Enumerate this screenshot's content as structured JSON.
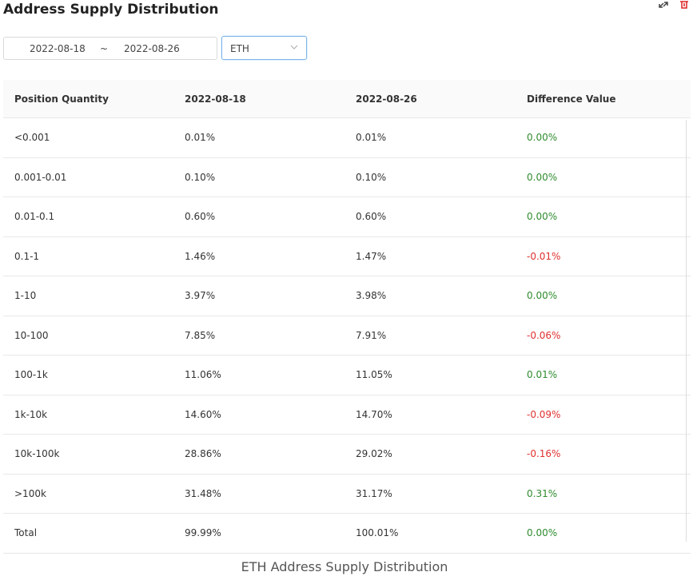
{
  "header": {
    "title": "Address Supply Distribution"
  },
  "filters": {
    "start_date": "2022-08-18",
    "separator": "~",
    "end_date": "2022-08-26",
    "asset": "ETH"
  },
  "table": {
    "columns": [
      "Position Quantity",
      "2022-08-18",
      "2022-08-26",
      "Difference Value"
    ],
    "rows": [
      [
        "<0.001",
        "0.01%",
        "0.01%",
        "0.00%"
      ],
      [
        "0.001-0.01",
        "0.10%",
        "0.10%",
        "0.00%"
      ],
      [
        "0.01-0.1",
        "0.60%",
        "0.60%",
        "0.00%"
      ],
      [
        "0.1-1",
        "1.46%",
        "1.47%",
        "-0.01%"
      ],
      [
        "1-10",
        "3.97%",
        "3.98%",
        "0.00%"
      ],
      [
        "10-100",
        "7.85%",
        "7.91%",
        "-0.06%"
      ],
      [
        "100-1k",
        "11.06%",
        "11.05%",
        "0.01%"
      ],
      [
        "1k-10k",
        "14.60%",
        "14.70%",
        "-0.09%"
      ],
      [
        "10k-100k",
        "28.86%",
        "29.02%",
        "-0.16%"
      ],
      [
        ">100k",
        "31.48%",
        "31.17%",
        "0.31%"
      ],
      [
        "Total",
        "99.99%",
        "100.01%",
        "0.00%"
      ]
    ]
  },
  "caption": "ETH Address Supply Distribution"
}
